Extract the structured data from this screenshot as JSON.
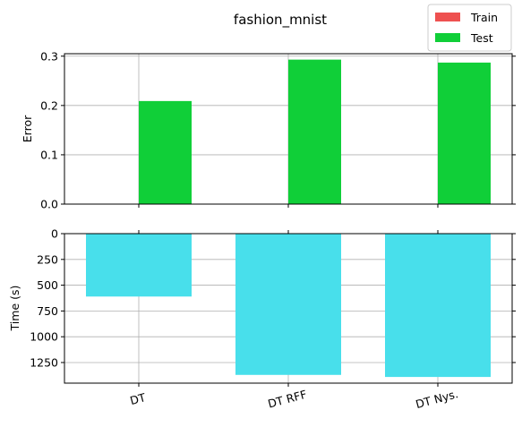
{
  "chart_data": {
    "type": "bar",
    "title": "fashion_mnist",
    "categories": [
      "DT",
      "DT RFF",
      "DT Nys."
    ],
    "legend": {
      "placement": "top-right",
      "entries": [
        {
          "name": "Train",
          "color": "#ee5150"
        },
        {
          "name": "Test",
          "color": "#10cf38"
        }
      ]
    },
    "subplots": [
      {
        "ylabel": "Error",
        "ylim": [
          0,
          0.305
        ],
        "yticks": [
          0.0,
          0.1,
          0.2,
          0.3
        ],
        "ytick_labels": [
          "0.0",
          "0.1",
          "0.2",
          "0.3"
        ],
        "grid": true,
        "series": [
          {
            "name": "Train",
            "color": "#ee5150",
            "values": [
              0,
              0,
              0
            ]
          },
          {
            "name": "Test",
            "color": "#10cf38",
            "values": [
              0.209,
              0.293,
              0.287
            ]
          }
        ]
      },
      {
        "ylabel": "Time (s)",
        "ylim": [
          0,
          1450
        ],
        "inverted": true,
        "yticks": [
          0,
          250,
          500,
          750,
          1000,
          1250
        ],
        "ytick_labels": [
          "0",
          "250",
          "500",
          "750",
          "1000",
          "1250"
        ],
        "grid": true,
        "series": [
          {
            "name": "Time",
            "color": "#48dfeb",
            "values": [
              610,
              1370,
              1390
            ]
          }
        ]
      }
    ]
  }
}
